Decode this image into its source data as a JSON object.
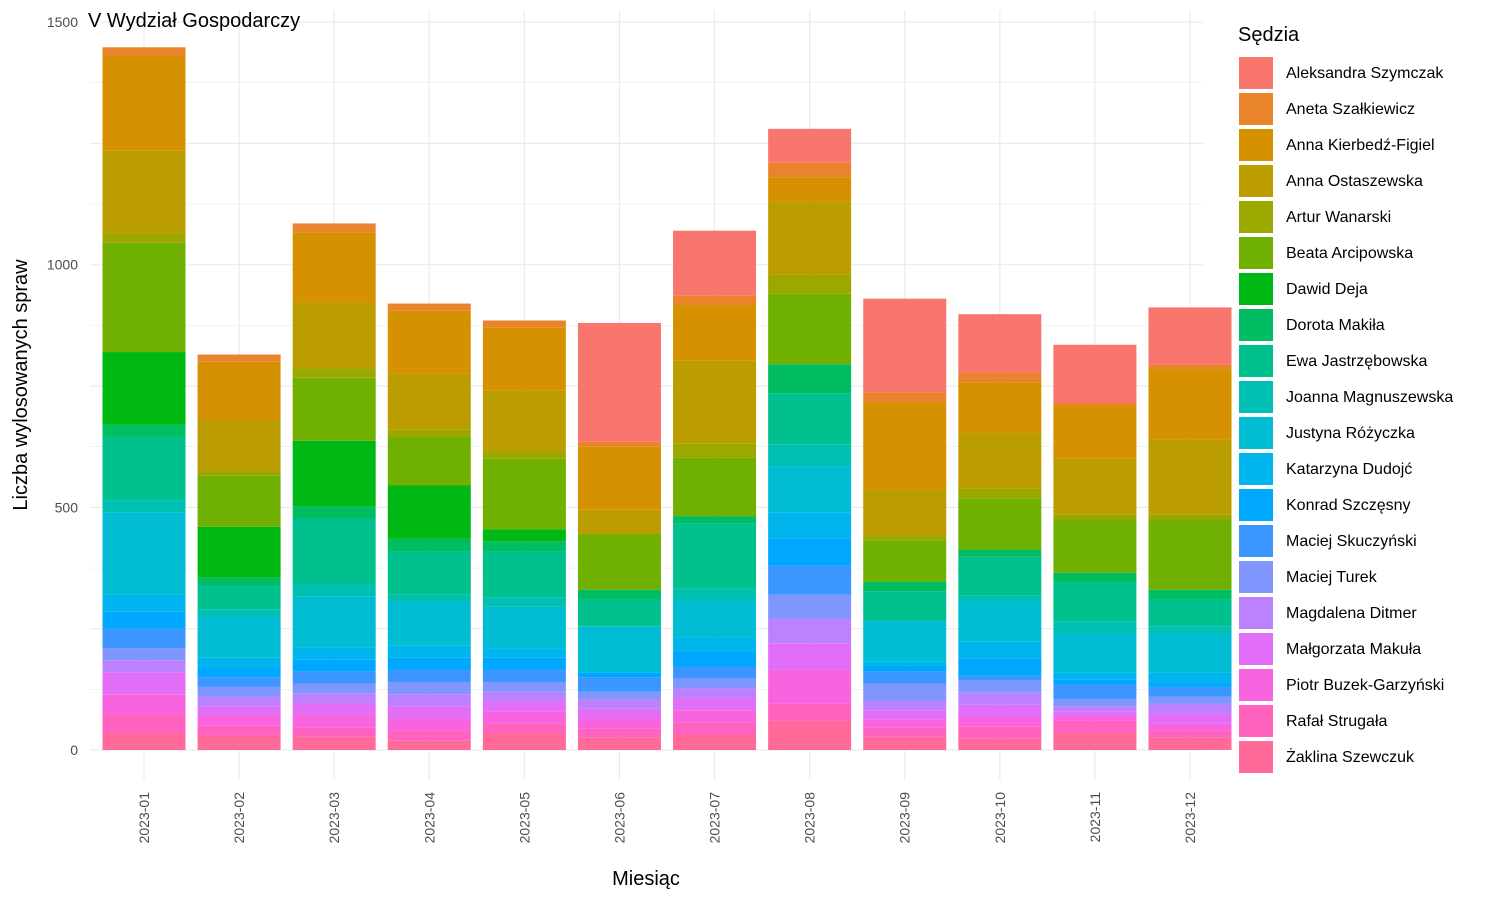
{
  "chart_data": {
    "type": "bar",
    "stacked": true,
    "title": "V Wydział Gospodarczy",
    "xlabel": "Miesiąc",
    "ylabel": "Liczba wylosowanych spraw",
    "ylim": [
      0,
      1500
    ],
    "yticks": [
      0,
      500,
      1000,
      1500
    ],
    "grid": true,
    "legend_title": "Sędzia",
    "legend_position": "right",
    "categories": [
      "2023-01",
      "2023-02",
      "2023-03",
      "2023-04",
      "2023-05",
      "2023-06",
      "2023-07",
      "2023-08",
      "2023-09",
      "2023-10",
      "2023-11",
      "2023-12"
    ],
    "series": [
      {
        "name": "Aleksandra Szymczak",
        "color": "#F8766D",
        "values": [
          0,
          0,
          0,
          0,
          0,
          245,
          133,
          70,
          193,
          120,
          120,
          117
        ]
      },
      {
        "name": "Aneta Szałkiewicz",
        "color": "#E9842C",
        "values": [
          18,
          15,
          18,
          15,
          15,
          10,
          20,
          30,
          20,
          20,
          5,
          10
        ]
      },
      {
        "name": "Anna Kierbedź-Figiel",
        "color": "#D69100",
        "values": [
          195,
          120,
          145,
          130,
          130,
          130,
          115,
          50,
          180,
          105,
          110,
          145
        ]
      },
      {
        "name": "Anna Ostaszewska",
        "color": "#BC9D00",
        "values": [
          170,
          105,
          135,
          115,
          125,
          50,
          170,
          150,
          95,
          115,
          115,
          155
        ]
      },
      {
        "name": "Artur Wanarski",
        "color": "#9CA700",
        "values": [
          20,
          10,
          20,
          15,
          15,
          0,
          30,
          40,
          10,
          20,
          10,
          10
        ]
      },
      {
        "name": "Beata Arcipowska",
        "color": "#6FB000",
        "values": [
          225,
          105,
          130,
          100,
          145,
          115,
          120,
          145,
          85,
          105,
          110,
          145
        ]
      },
      {
        "name": "Dawid Deja",
        "color": "#00B813",
        "values": [
          150,
          105,
          135,
          110,
          25,
          0,
          0,
          0,
          0,
          0,
          0,
          0
        ]
      },
      {
        "name": "Dorota Makiła",
        "color": "#00BD61",
        "values": [
          25,
          15,
          25,
          25,
          20,
          20,
          15,
          60,
          20,
          15,
          20,
          20
        ]
      },
      {
        "name": "Ewa Jastrzębowska",
        "color": "#00C08E",
        "values": [
          130,
          50,
          135,
          90,
          95,
          55,
          135,
          105,
          60,
          80,
          80,
          55
        ]
      },
      {
        "name": "Joanna Magnuszewska",
        "color": "#00C0B4",
        "values": [
          25,
          15,
          25,
          15,
          20,
          0,
          25,
          45,
          0,
          10,
          25,
          15
        ]
      },
      {
        "name": "Justyna Różyczka",
        "color": "#00BDD4",
        "values": [
          170,
          85,
          105,
          90,
          85,
          95,
          75,
          95,
          85,
          85,
          80,
          80
        ]
      },
      {
        "name": "Katarzyna Dudojć",
        "color": "#00B5EE",
        "values": [
          35,
          20,
          25,
          25,
          20,
          0,
          30,
          55,
          10,
          35,
          15,
          20
        ]
      },
      {
        "name": "Konrad Szczęsny",
        "color": "#00A7FF",
        "values": [
          35,
          20,
          25,
          25,
          25,
          10,
          30,
          55,
          10,
          35,
          10,
          10
        ]
      },
      {
        "name": "Maciej Skuczyński",
        "color": "#3B97FF",
        "values": [
          40,
          20,
          25,
          25,
          25,
          30,
          25,
          60,
          25,
          10,
          30,
          20
        ]
      },
      {
        "name": "Maciej Turek",
        "color": "#7F96FF",
        "values": [
          25,
          20,
          20,
          25,
          20,
          15,
          20,
          50,
          35,
          25,
          15,
          15
        ]
      },
      {
        "name": "Magdalena Ditmer",
        "color": "#BC81FF",
        "values": [
          25,
          20,
          20,
          25,
          20,
          20,
          20,
          50,
          20,
          25,
          10,
          20
        ]
      },
      {
        "name": "Małgorzata Makuła",
        "color": "#E26EF7",
        "values": [
          45,
          20,
          25,
          25,
          20,
          20,
          25,
          55,
          20,
          25,
          10,
          20
        ]
      },
      {
        "name": "Piotr Buzek-Garzyński",
        "color": "#F863DF",
        "values": [
          40,
          20,
          25,
          25,
          25,
          20,
          25,
          70,
          15,
          20,
          10,
          15
        ]
      },
      {
        "name": "Rafał Strugała",
        "color": "#FF62BF",
        "values": [
          40,
          20,
          20,
          20,
          20,
          20,
          25,
          35,
          20,
          25,
          25,
          15
        ]
      },
      {
        "name": "Żaklina Szewczuk",
        "color": "#FF6A98",
        "values": [
          35,
          30,
          27,
          20,
          35,
          25,
          32,
          60,
          27,
          23,
          35,
          25
        ]
      }
    ]
  }
}
